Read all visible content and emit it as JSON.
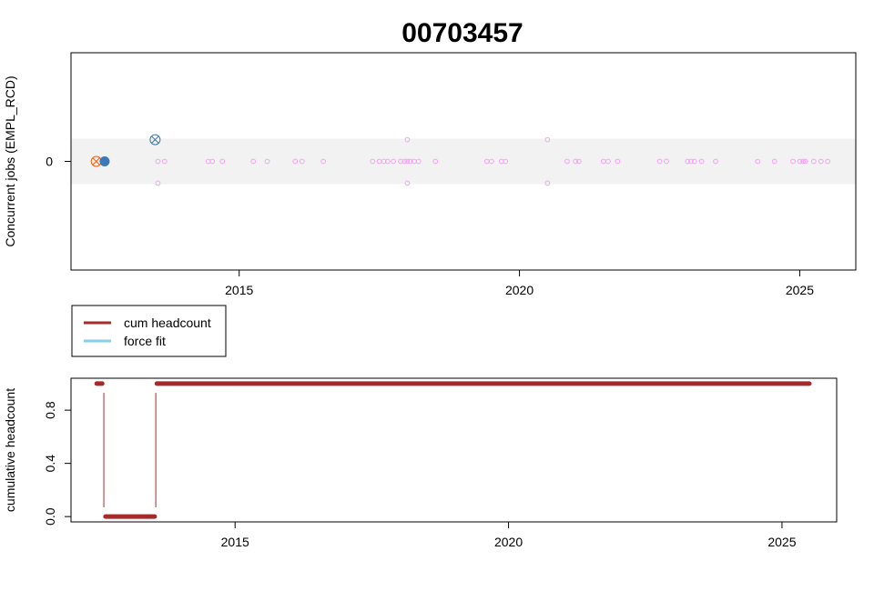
{
  "chart_data": [
    {
      "type": "scatter",
      "title": "00703457",
      "ylabel": "Concurrent jobs (EMPL_RCD)",
      "xlabel": "",
      "xlim": [
        2012.0,
        2026.0
      ],
      "ylim": [
        -5,
        5
      ],
      "x_ticks": [
        2015,
        2020,
        2025
      ],
      "x_tick_labels": [
        "2015",
        "2020",
        "2025"
      ],
      "y_ticks": [
        0
      ],
      "y_tick_labels": [
        "0"
      ],
      "band": {
        "from": -1.05,
        "to": 1.05,
        "color": "#f2f2f2"
      },
      "series": [
        {
          "marker": "open-circle",
          "color": "#ff99ff",
          "points": [
            [
              2013.55,
              0
            ],
            [
              2013.67,
              0
            ],
            [
              2013.55,
              -1
            ],
            [
              2014.45,
              0
            ],
            [
              2014.52,
              0
            ],
            [
              2014.7,
              0
            ],
            [
              2015.25,
              0
            ],
            [
              2015.5,
              0
            ],
            [
              2016.0,
              0
            ],
            [
              2016.12,
              0
            ],
            [
              2016.5,
              0
            ],
            [
              2017.38,
              0
            ],
            [
              2017.5,
              0
            ],
            [
              2017.58,
              0
            ],
            [
              2017.65,
              0
            ],
            [
              2017.75,
              0
            ],
            [
              2017.88,
              0
            ],
            [
              2017.95,
              0
            ],
            [
              2018.0,
              0
            ],
            [
              2018.05,
              0
            ],
            [
              2018.12,
              0
            ],
            [
              2018.2,
              0
            ],
            [
              2018.0,
              1
            ],
            [
              2018.0,
              -1
            ],
            [
              2018.5,
              0
            ],
            [
              2019.42,
              0
            ],
            [
              2019.5,
              0
            ],
            [
              2019.68,
              0
            ],
            [
              2019.75,
              0
            ],
            [
              2020.5,
              1
            ],
            [
              2020.5,
              -1
            ],
            [
              2020.85,
              0
            ],
            [
              2021.0,
              0
            ],
            [
              2021.06,
              0
            ],
            [
              2021.5,
              0
            ],
            [
              2021.58,
              0
            ],
            [
              2021.75,
              0
            ],
            [
              2022.5,
              0
            ],
            [
              2022.62,
              0
            ],
            [
              2023.0,
              0
            ],
            [
              2023.06,
              0
            ],
            [
              2023.12,
              0
            ],
            [
              2023.25,
              0
            ],
            [
              2023.5,
              0
            ],
            [
              2024.25,
              0
            ],
            [
              2024.55,
              0
            ],
            [
              2024.88,
              0
            ],
            [
              2025.0,
              0
            ],
            [
              2025.06,
              0
            ],
            [
              2025.1,
              0
            ],
            [
              2025.25,
              0
            ],
            [
              2025.38,
              0
            ],
            [
              2025.5,
              0
            ]
          ]
        },
        {
          "marker": "circle-x",
          "color": "#e8621e",
          "points": [
            [
              2012.45,
              0
            ]
          ]
        },
        {
          "marker": "filled-circle",
          "color": "#3b78b8",
          "points": [
            [
              2012.6,
              0
            ]
          ]
        },
        {
          "marker": "circle-x",
          "color": "#3b78b8",
          "points": [
            [
              2013.5,
              1
            ]
          ]
        }
      ]
    },
    {
      "type": "line",
      "title": "",
      "ylabel": "cumulative headcount",
      "xlabel": "",
      "xlim": [
        2012.0,
        2026.0
      ],
      "ylim": [
        -0.04,
        1.04
      ],
      "x_ticks": [
        2015,
        2020,
        2025
      ],
      "x_tick_labels": [
        "2015",
        "2020",
        "2025"
      ],
      "y_ticks": [
        0.0,
        0.4,
        0.8
      ],
      "y_tick_labels": [
        "0.0",
        "0.4",
        "0.8"
      ],
      "legend": {
        "placement": "top-left",
        "entries": [
          {
            "label": "cum headcount",
            "color": "#a52a2a"
          },
          {
            "label": "force fit",
            "color": "#87ceeb"
          }
        ]
      },
      "series": [
        {
          "name": "cum headcount",
          "color": "#a52a2a",
          "segments": [
            {
              "x_from": 2012.47,
              "x_to": 2012.57,
              "y": 1
            },
            {
              "x_from": 2012.63,
              "x_to": 2013.53,
              "y": 0
            },
            {
              "x_from": 2013.57,
              "x_to": 2025.5,
              "y": 1
            }
          ],
          "verticals": [
            {
              "x": 2012.6,
              "y_from": 0.07,
              "y_to": 0.93
            },
            {
              "x": 2013.55,
              "y_from": 0.07,
              "y_to": 0.93
            }
          ]
        }
      ]
    }
  ]
}
